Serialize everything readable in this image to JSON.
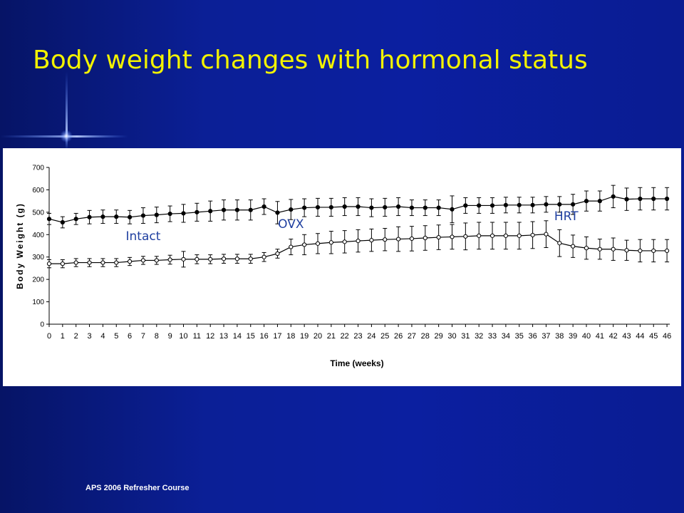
{
  "slide": {
    "title": "Body weight changes with hormonal status",
    "footer": "APS 2006 Refresher Course",
    "title_color": "#f2f200",
    "background_color": "#0b1f96"
  },
  "chart_data": {
    "type": "line",
    "title": "",
    "xlabel": "Time (weeks)",
    "ylabel": "Body Weight (g)",
    "ylim": [
      0,
      700
    ],
    "yticks": [
      0,
      100,
      200,
      300,
      400,
      500,
      600,
      700
    ],
    "x": [
      0,
      1,
      2,
      3,
      4,
      5,
      6,
      7,
      8,
      9,
      10,
      11,
      12,
      13,
      14,
      15,
      16,
      17,
      18,
      19,
      20,
      21,
      22,
      23,
      24,
      25,
      26,
      27,
      28,
      29,
      30,
      31,
      32,
      33,
      34,
      35,
      36,
      37,
      38,
      39,
      40,
      41,
      42,
      43,
      44,
      45,
      46
    ],
    "grid": false,
    "legend": "none",
    "annotations": [
      {
        "text": "Intact",
        "x": 7,
        "y": 375
      },
      {
        "text": "OVX",
        "x": 18,
        "y": 430
      },
      {
        "text": "HRT",
        "x": 38.5,
        "y": 465
      }
    ],
    "series": [
      {
        "marker": "filled-circle",
        "color": "#000000",
        "values": [
          470,
          455,
          470,
          478,
          480,
          480,
          478,
          485,
          488,
          493,
          495,
          500,
          505,
          510,
          510,
          510,
          525,
          498,
          512,
          520,
          522,
          522,
          525,
          525,
          520,
          522,
          525,
          520,
          520,
          520,
          513,
          530,
          530,
          530,
          532,
          532,
          532,
          535,
          535,
          535,
          550,
          550,
          570,
          558,
          560,
          560,
          560
        ],
        "error": [
          25,
          25,
          25,
          30,
          30,
          30,
          30,
          35,
          35,
          35,
          40,
          40,
          45,
          45,
          45,
          45,
          35,
          50,
          45,
          40,
          40,
          40,
          40,
          40,
          40,
          40,
          40,
          35,
          35,
          35,
          60,
          35,
          35,
          35,
          35,
          35,
          35,
          35,
          35,
          45,
          45,
          45,
          50,
          50,
          50,
          50,
          50
        ]
      },
      {
        "marker": "open-circle",
        "color": "#000000",
        "values": [
          270,
          270,
          275,
          275,
          275,
          275,
          280,
          285,
          285,
          288,
          290,
          290,
          290,
          292,
          292,
          292,
          300,
          315,
          345,
          355,
          360,
          365,
          368,
          372,
          375,
          378,
          380,
          382,
          385,
          388,
          390,
          392,
          395,
          395,
          395,
          395,
          398,
          402,
          362,
          348,
          340,
          335,
          335,
          330,
          328,
          328,
          328
        ],
        "error": [
          18,
          18,
          18,
          18,
          18,
          18,
          18,
          18,
          18,
          20,
          35,
          20,
          20,
          20,
          20,
          20,
          20,
          20,
          35,
          45,
          45,
          50,
          50,
          50,
          50,
          50,
          55,
          55,
          55,
          55,
          55,
          60,
          60,
          60,
          60,
          60,
          60,
          60,
          60,
          50,
          50,
          45,
          50,
          45,
          50,
          50,
          50
        ]
      }
    ]
  }
}
